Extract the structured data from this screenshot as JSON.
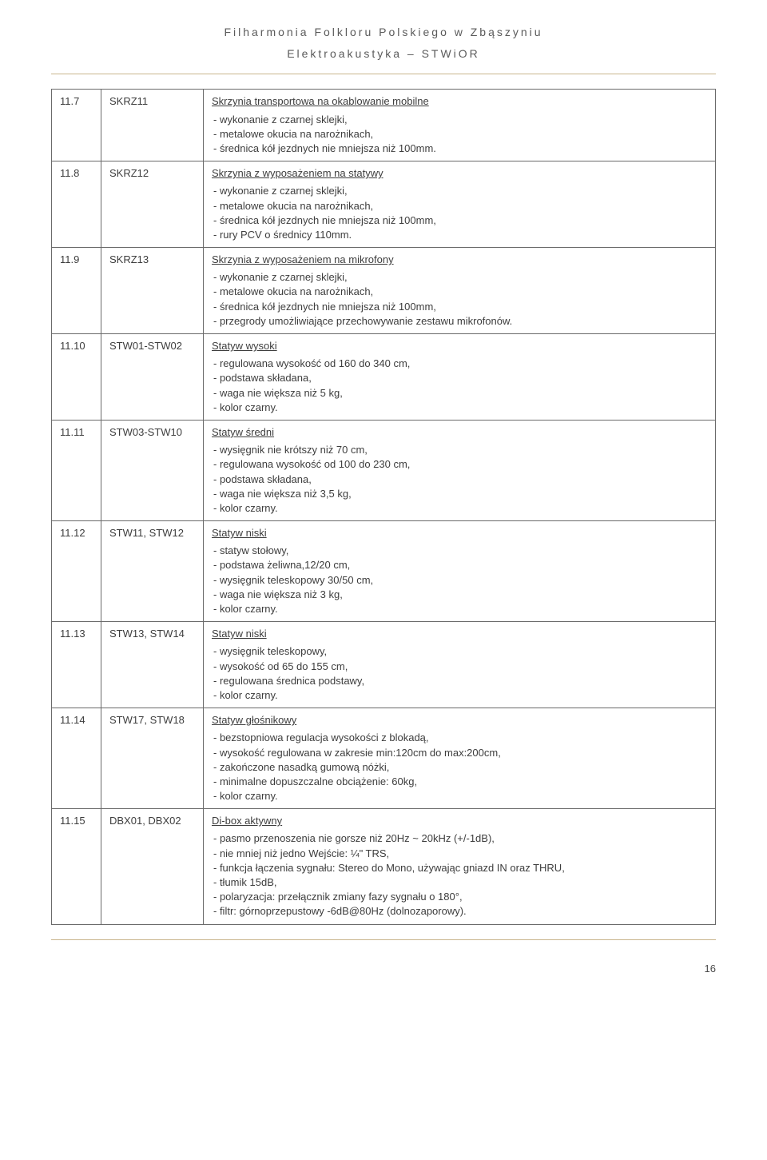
{
  "header": {
    "line1": "Filharmonia Folkloru Polskiego w Zbąszyniu",
    "line2": "Elektroakustyka – STWiOR"
  },
  "rows": [
    {
      "num": "11.7",
      "code": "SKRZ11",
      "title": "Skrzynia transportowa na okablowanie mobilne",
      "details": [
        "- wykonanie z czarnej sklejki,",
        "- metalowe okucia na narożnikach,",
        "- średnica kół jezdnych nie mniejsza niż 100mm."
      ]
    },
    {
      "num": "11.8",
      "code": "SKRZ12",
      "title": "Skrzynia z wyposażeniem na statywy",
      "details": [
        "- wykonanie z czarnej sklejki,",
        "- metalowe okucia na narożnikach,",
        "- średnica kół jezdnych nie mniejsza niż 100mm,",
        "- rury PCV o średnicy 110mm."
      ]
    },
    {
      "num": "11.9",
      "code": "SKRZ13",
      "title": "Skrzynia z wyposażeniem na mikrofony",
      "details": [
        "- wykonanie z czarnej sklejki,",
        "- metalowe okucia na narożnikach,",
        "- średnica kół jezdnych nie mniejsza niż 100mm,",
        "- przegrody umożliwiające przechowywanie zestawu mikrofonów."
      ]
    },
    {
      "num": "11.10",
      "code": "STW01-STW02",
      "title": "Statyw wysoki",
      "details": [
        "- regulowana wysokość od 160 do 340 cm,",
        "- podstawa składana,",
        "- waga nie większa niż 5 kg,",
        "- kolor czarny."
      ]
    },
    {
      "num": "11.11",
      "code": "STW03-STW10",
      "title": "Statyw średni",
      "details": [
        "- wysięgnik nie krótszy niż 70 cm,",
        "- regulowana wysokość od 100 do 230 cm,",
        "- podstawa składana,",
        "- waga nie większa niż 3,5 kg,",
        "- kolor czarny."
      ]
    },
    {
      "num": "11.12",
      "code": "STW11, STW12",
      "title": "Statyw niski",
      "details": [
        "- statyw stołowy,",
        "- podstawa żeliwna,12/20 cm,",
        "- wysięgnik teleskopowy 30/50 cm,",
        "- waga nie większa niż 3 kg,",
        "- kolor czarny."
      ]
    },
    {
      "num": "11.13",
      "code": "STW13, STW14",
      "title": "Statyw niski",
      "details": [
        "- wysięgnik teleskopowy,",
        "- wysokość od 65 do 155 cm,",
        "- regulowana średnica podstawy,",
        "- kolor czarny."
      ]
    },
    {
      "num": "11.14",
      "code": "STW17, STW18",
      "title": "Statyw głośnikowy",
      "details": [
        "- bezstopniowa regulacja wysokości z blokadą,",
        "- wysokość regulowana w zakresie min:120cm do max:200cm,",
        "- zakończone nasadką gumową nóżki,",
        "- minimalne dopuszczalne obciążenie: 60kg,",
        "- kolor czarny."
      ]
    },
    {
      "num": "11.15",
      "code": "DBX01, DBX02",
      "title": "Di-box aktywny",
      "details": [
        "- pasmo przenoszenia nie gorsze niż 20Hz ~ 20kHz (+/-1dB),",
        "- nie mniej niż jedno Wejście: ¼\" TRS,",
        "- funkcja łączenia sygnału: Stereo do Mono, używając gniazd IN oraz THRU,",
        "- tłumik 15dB,",
        "- polaryzacja: przełącznik zmiany fazy sygnału o 180°,",
        "- filtr: górnoprzepustowy -6dB@80Hz (dolnozaporowy)."
      ]
    }
  ],
  "page_number": "16"
}
